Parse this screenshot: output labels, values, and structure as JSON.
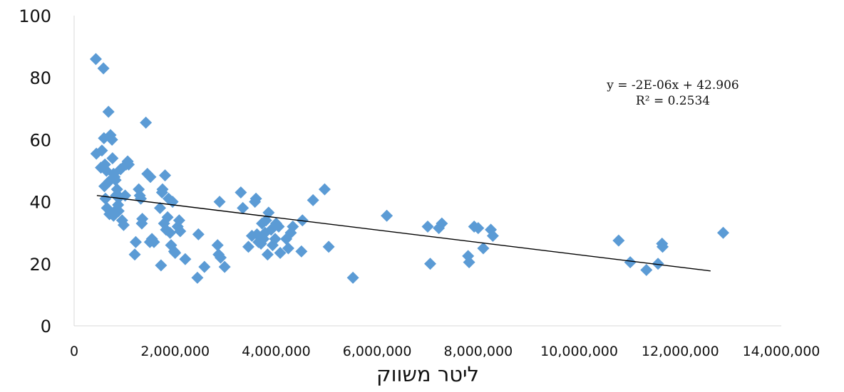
{
  "chart_data": {
    "type": "scatter",
    "title": "",
    "xlabel": "ליטר משווק",
    "ylabel": "",
    "xlim": [
      0,
      14000000
    ],
    "ylim": [
      0,
      100
    ],
    "x_ticks": [
      0,
      2000000,
      4000000,
      6000000,
      8000000,
      10000000,
      12000000,
      14000000
    ],
    "x_tick_labels": [
      "0",
      "2,000,000",
      "4,000,000",
      "6,000,000",
      "8,000,000",
      "10,000,000",
      "12,000,000",
      "14,000,000"
    ],
    "y_ticks": [
      0,
      20,
      40,
      60,
      80,
      100
    ],
    "y_tick_labels": [
      "0",
      "20",
      "40",
      "60",
      "80",
      "100"
    ],
    "grid": false,
    "legend": "none",
    "marker_color": "#5b9bd5",
    "trendline": {
      "type": "linear",
      "slope": -2e-06,
      "intercept": 42.906,
      "x_range": [
        450000,
        12600000
      ],
      "color": "#000000",
      "equation_text": "y = -2E-06x + 42.906",
      "r2_text": "R² = 0.2534"
    },
    "series": [
      {
        "x": [
          430000,
          580000,
          440000,
          550000,
          530000,
          590000,
          610000,
          640000,
          680000,
          690000,
          720000,
          750000,
          760000,
          780000,
          800000,
          820000,
          830000,
          850000,
          870000,
          880000,
          900000,
          920000,
          950000,
          980000,
          1010000,
          1030000,
          1060000,
          1080000,
          600000,
          620000,
          650000,
          700000,
          780000,
          810000,
          1200000,
          1220000,
          1280000,
          1300000,
          1320000,
          1340000,
          1350000,
          1420000,
          1450000,
          1500000,
          1510000,
          1540000,
          1580000,
          1700000,
          1720000,
          1740000,
          1750000,
          1780000,
          1800000,
          1820000,
          1850000,
          1870000,
          1900000,
          1920000,
          1950000,
          1980000,
          2000000,
          2050000,
          2080000,
          2100000,
          2200000,
          2440000,
          2460000,
          2580000,
          2840000,
          2860000,
          2880000,
          2900000,
          2980000,
          3300000,
          3340000,
          3450000,
          3520000,
          3580000,
          3600000,
          3620000,
          3650000,
          3700000,
          3720000,
          3750000,
          3780000,
          3800000,
          3830000,
          3850000,
          3900000,
          3930000,
          3980000,
          4000000,
          4050000,
          4080000,
          4200000,
          4240000,
          4290000,
          4330000,
          4500000,
          4520000,
          4730000,
          4960000,
          5040000,
          5520000,
          6190000,
          7000000,
          7050000,
          7220000,
          7280000,
          7800000,
          7820000,
          7920000,
          8000000,
          8100000,
          8250000,
          8290000,
          10780000,
          11010000,
          11330000,
          11560000,
          11640000,
          11650000,
          12850000
        ],
        "y": [
          86,
          83,
          55.5,
          56.5,
          51,
          60.5,
          52,
          50,
          69,
          46.5,
          61.5,
          60,
          54,
          49,
          48,
          47,
          42,
          44,
          39,
          37,
          41.5,
          50.5,
          34,
          32.5,
          42,
          52,
          53,
          52,
          45,
          41,
          38,
          36,
          35.5,
          37,
          23,
          27,
          44,
          42,
          41,
          33,
          34.5,
          65.5,
          49,
          27,
          48,
          28,
          27,
          38,
          19.5,
          43,
          44,
          33,
          48.5,
          31,
          35,
          41,
          30,
          26,
          40,
          24,
          23.5,
          32,
          34,
          30.5,
          21.5,
          15.5,
          29.5,
          19,
          26,
          23,
          40,
          22,
          19,
          43,
          38,
          25.5,
          29,
          40,
          41,
          29.5,
          27,
          26.5,
          33,
          28,
          30,
          34,
          23,
          36.5,
          31,
          26,
          28,
          33,
          32,
          23.5,
          28,
          25,
          30,
          32,
          24,
          34,
          40.5,
          44,
          25.5,
          15.5,
          35.5,
          32,
          20,
          31.5,
          33,
          22.5,
          20.5,
          32,
          31.5,
          25,
          31,
          29,
          27.5,
          20.5,
          18,
          20,
          26.5,
          25.5,
          30
        ]
      }
    ]
  }
}
